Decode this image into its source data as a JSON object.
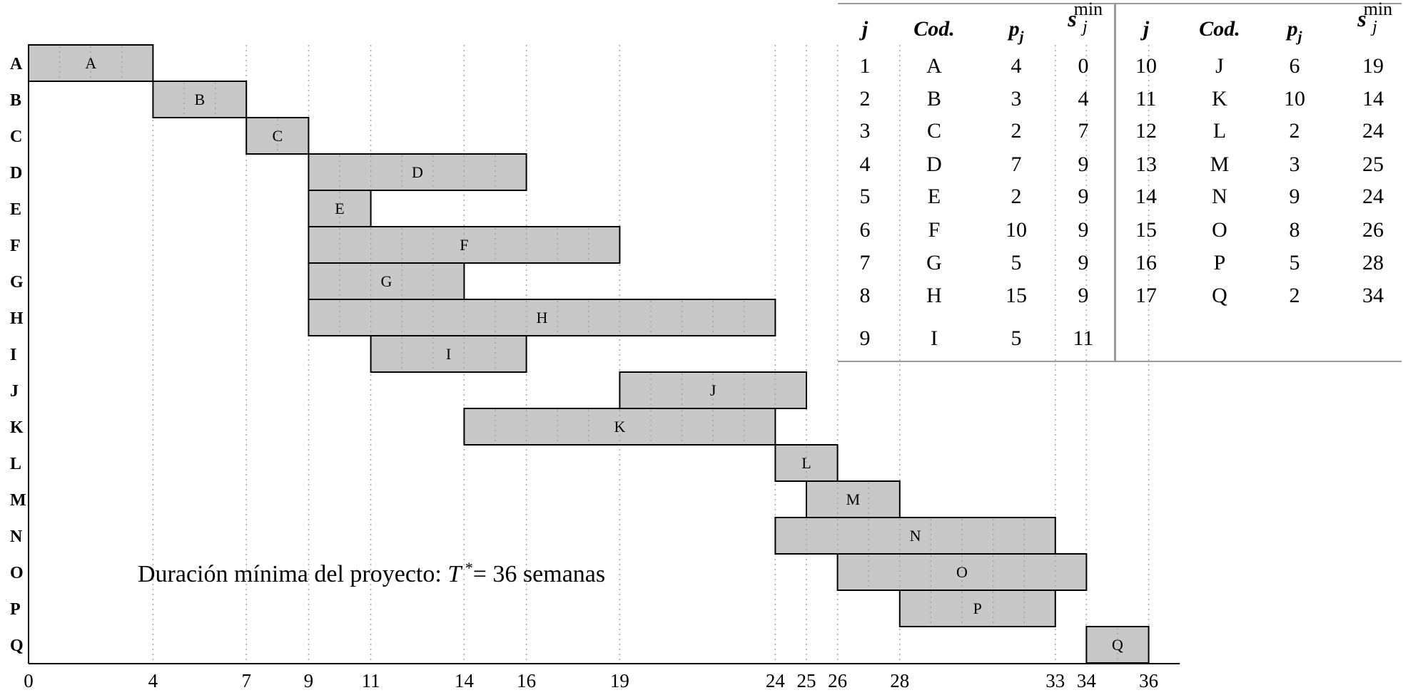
{
  "chart_data": {
    "type": "gantt",
    "x_ticks": [
      0,
      4,
      7,
      9,
      11,
      14,
      16,
      19,
      24,
      25,
      26,
      28,
      33,
      34,
      36
    ],
    "xlim": [
      0,
      37
    ],
    "tasks": [
      {
        "code": "A",
        "start": 0,
        "duration": 4
      },
      {
        "code": "B",
        "start": 4,
        "duration": 3
      },
      {
        "code": "C",
        "start": 7,
        "duration": 2
      },
      {
        "code": "D",
        "start": 9,
        "duration": 7
      },
      {
        "code": "E",
        "start": 9,
        "duration": 2
      },
      {
        "code": "F",
        "start": 9,
        "duration": 10
      },
      {
        "code": "G",
        "start": 9,
        "duration": 5
      },
      {
        "code": "H",
        "start": 9,
        "duration": 15
      },
      {
        "code": "I",
        "start": 11,
        "duration": 5
      },
      {
        "code": "J",
        "start": 19,
        "duration": 6
      },
      {
        "code": "K",
        "start": 14,
        "duration": 10
      },
      {
        "code": "L",
        "start": 24,
        "duration": 2
      },
      {
        "code": "M",
        "start": 25,
        "duration": 3
      },
      {
        "code": "N",
        "start": 24,
        "duration": 9
      },
      {
        "code": "O",
        "start": 26,
        "duration": 8
      },
      {
        "code": "P",
        "start": 28,
        "duration": 5
      },
      {
        "code": "Q",
        "start": 34,
        "duration": 2
      }
    ],
    "bar_color": "#c8c8c8",
    "annotation": {
      "text": "Duración mínima del proyecto:",
      "symbol": "T",
      "sup": "*",
      "equals": "=",
      "value": "36 semanas"
    }
  },
  "table": {
    "headers": {
      "j": "j",
      "cod": "Cod.",
      "p": "p",
      "p_sub": "j",
      "s": "s",
      "s_sup": "min",
      "s_sub": "j"
    },
    "left_rows": [
      [
        "1",
        "A",
        "4",
        "0"
      ],
      [
        "2",
        "B",
        "3",
        "4"
      ],
      [
        "3",
        "C",
        "2",
        "7"
      ],
      [
        "4",
        "D",
        "7",
        "9"
      ],
      [
        "5",
        "E",
        "2",
        "9"
      ],
      [
        "6",
        "F",
        "10",
        "9"
      ],
      [
        "7",
        "G",
        "5",
        "9"
      ],
      [
        "8",
        "H",
        "15",
        "9"
      ],
      [
        "9",
        "I",
        "5",
        "11"
      ]
    ],
    "right_rows": [
      [
        "10",
        "J",
        "6",
        "19"
      ],
      [
        "11",
        "K",
        "10",
        "14"
      ],
      [
        "12",
        "L",
        "2",
        "24"
      ],
      [
        "13",
        "M",
        "3",
        "25"
      ],
      [
        "14",
        "N",
        "9",
        "24"
      ],
      [
        "15",
        "O",
        "8",
        "26"
      ],
      [
        "16",
        "P",
        "5",
        "28"
      ],
      [
        "17",
        "Q",
        "2",
        "34"
      ]
    ]
  }
}
